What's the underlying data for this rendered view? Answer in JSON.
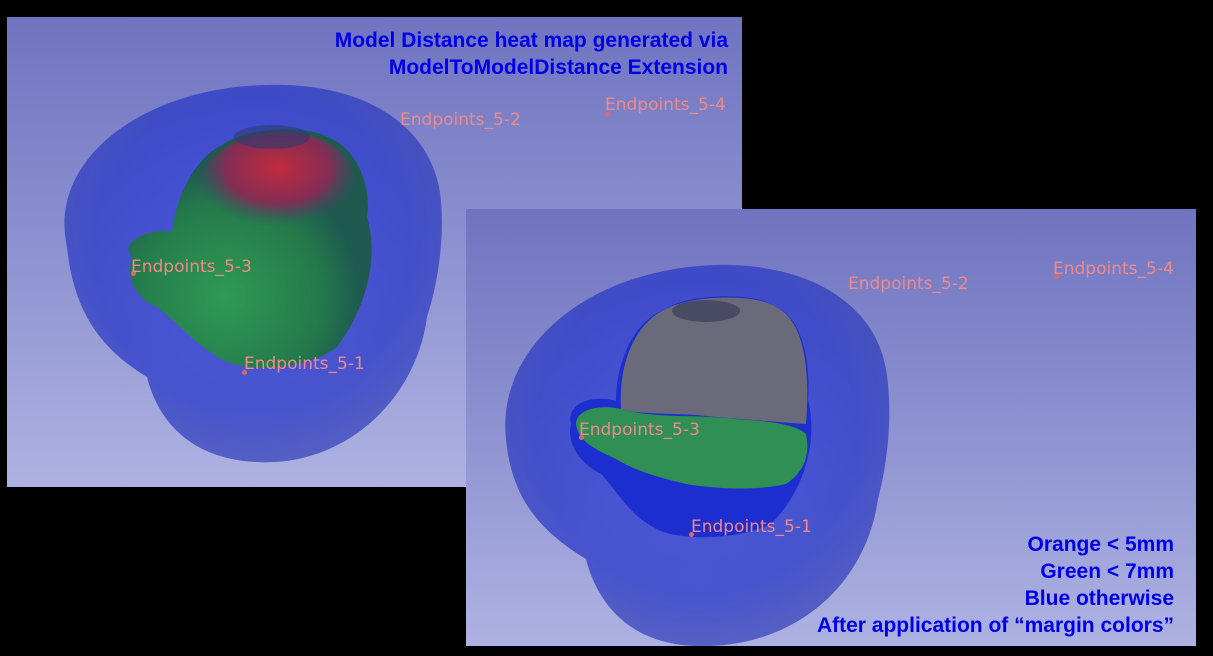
{
  "top_caption": {
    "line1": "Model Distance heat map generated via",
    "line2": "ModelToModelDistance Extension"
  },
  "bottom_caption": {
    "line1": "Orange < 5mm",
    "line2": "Green < 7mm",
    "line3": "Blue otherwise",
    "line4": "After application of “margin colors”"
  },
  "left_view": {
    "fiducials": [
      "Endpoints_5-2",
      "Endpoints_5-4",
      "Endpoints_5-3",
      "Endpoints_5-1"
    ]
  },
  "right_view": {
    "fiducials": [
      "Endpoints_5-2",
      "Endpoints_5-4",
      "Endpoints_5-3",
      "Endpoints_5-1"
    ]
  },
  "colors": {
    "caption_text": "#0000e6",
    "fiducial_label": "#f08a8a",
    "heatmap_red": "#b4283c",
    "heatmap_green": "#2f8f55",
    "heatmap_blue": "#1c2ed0",
    "margin_gray": "#6a6a7a"
  }
}
